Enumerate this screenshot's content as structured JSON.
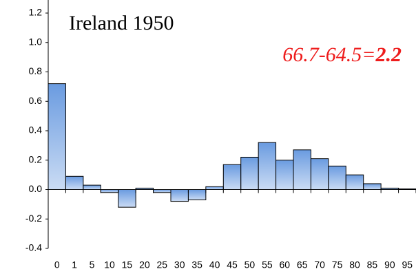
{
  "chart_data": {
    "type": "bar",
    "title": "Ireland 1950",
    "annotation": {
      "text": "66.7-64.5=",
      "result": "2.2",
      "color": "#ee1c1c"
    },
    "categories": [
      "0",
      "1",
      "5",
      "10",
      "15",
      "20",
      "25",
      "30",
      "35",
      "40",
      "45",
      "50",
      "55",
      "60",
      "65",
      "70",
      "75",
      "80",
      "85",
      "90",
      "95"
    ],
    "values": [
      0.72,
      0.09,
      0.03,
      -0.02,
      -0.12,
      0.01,
      -0.02,
      -0.08,
      -0.07,
      0.02,
      0.17,
      0.22,
      0.32,
      0.2,
      0.27,
      0.21,
      0.16,
      0.1,
      0.04,
      0.01,
      0.005
    ],
    "color": "#6a9be0",
    "ylim": [
      -0.4,
      1.2
    ],
    "yticks": [
      -0.4,
      -0.2,
      {
        "value": 0,
        "label": "0.0"
      },
      0.2,
      0.4,
      0.6,
      0.8,
      {
        "value": 1,
        "label": "1.0"
      },
      1.2
    ],
    "grid": false
  }
}
